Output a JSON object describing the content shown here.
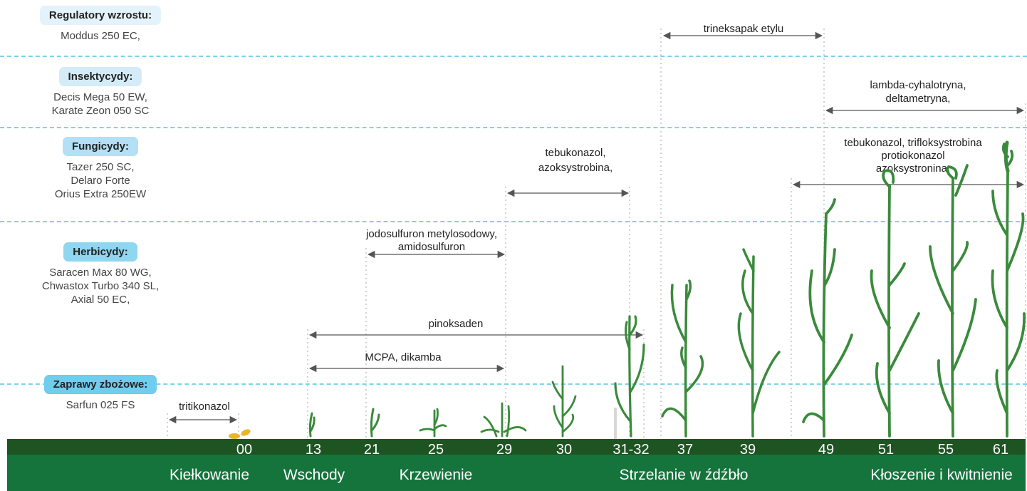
{
  "colors": {
    "separator": "#7fd2ec",
    "bar_dark": "#1d5422",
    "bar_green": "#14743c",
    "plant": "#3a8a3c",
    "seed": "#e8b62a",
    "badge_light": "#e4f3fb",
    "badge_mid": "#b3e0f5",
    "badge_strong": "#6fcdee"
  },
  "categories": [
    {
      "title": "Regulatory wzrostu:",
      "products": [
        "Moddus 250 EC,"
      ]
    },
    {
      "title": "Insektycydy:",
      "products": [
        "Decis Mega 50 EW,",
        "Karate Zeon 050 SC"
      ]
    },
    {
      "title": "Fungicydy:",
      "products": [
        "Tazer 250 SC,",
        "Delaro Forte",
        "Orius Extra 250EW"
      ]
    },
    {
      "title": "Herbicydy:",
      "products": [
        "Saracen Max 80 WG,",
        "Chwastox Turbo 340 SL,",
        "Axial 50 EC,"
      ]
    },
    {
      "title": "Zaprawy zbożowe:",
      "products": [
        "Sarfun 025 FS"
      ]
    }
  ],
  "applications": [
    {
      "name": "trineksapak etylu",
      "lines": [
        "trineksapak etylu"
      ]
    },
    {
      "name": "lambda-cyhalotryna",
      "lines": [
        "lambda-cyhalotryna,",
        "deltametryna,"
      ]
    },
    {
      "name": "tebukonazol-azoksystrobina",
      "lines": [
        "tebukonazol,",
        "azoksystrobina,"
      ]
    },
    {
      "name": "tebukonazol-trifloksystrobina",
      "lines": [
        "tebukonazol, trifloksystrobina",
        "protiokonazol",
        "azoksystronina,"
      ]
    },
    {
      "name": "jodosulfuron",
      "lines": [
        "jodosulfuron metylosodowy,",
        "amidosulfuron"
      ]
    },
    {
      "name": "pinoksaden",
      "lines": [
        "pinoksaden"
      ]
    },
    {
      "name": "mcpa-dikamba",
      "lines": [
        "MCPA, dikamba"
      ]
    },
    {
      "name": "tritikonazol",
      "lines": [
        "tritikonazol"
      ]
    }
  ],
  "stages": [
    "00",
    "13",
    "21",
    "25",
    "29",
    "30",
    "31-32",
    "37",
    "39",
    "49",
    "51",
    "55",
    "61"
  ],
  "phases": [
    "Kiełkowanie",
    "Wschody",
    "Krzewienie",
    "Strzelanie w źdźbło",
    "Kłoszenie i kwitnienie"
  ]
}
